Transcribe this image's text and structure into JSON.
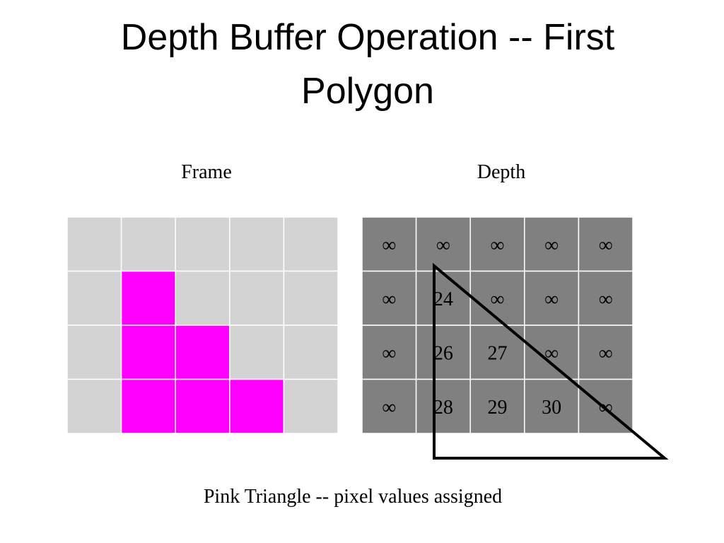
{
  "title": "Depth Buffer Operation -- First Polygon",
  "frame": {
    "label": "Frame",
    "cells": [
      [
        "#d3d3d3",
        "#d3d3d3",
        "#d3d3d3",
        "#d3d3d3",
        "#d3d3d3"
      ],
      [
        "#d3d3d3",
        "#ff00ff",
        "#d3d3d3",
        "#d3d3d3",
        "#d3d3d3"
      ],
      [
        "#d3d3d3",
        "#ff00ff",
        "#ff00ff",
        "#d3d3d3",
        "#d3d3d3"
      ],
      [
        "#d3d3d3",
        "#ff00ff",
        "#ff00ff",
        "#ff00ff",
        "#d3d3d3"
      ]
    ]
  },
  "depth": {
    "label": "Depth",
    "color": "#808080",
    "rows": [
      [
        "∞",
        "∞",
        "∞",
        "∞",
        "∞"
      ],
      [
        "∞",
        24,
        "∞",
        "∞",
        "∞"
      ],
      [
        "∞",
        26,
        27,
        "∞",
        "∞"
      ],
      [
        "∞",
        28,
        29,
        30,
        "∞"
      ]
    ]
  },
  "caption": "Pink Triangle -- pixel values assigned"
}
